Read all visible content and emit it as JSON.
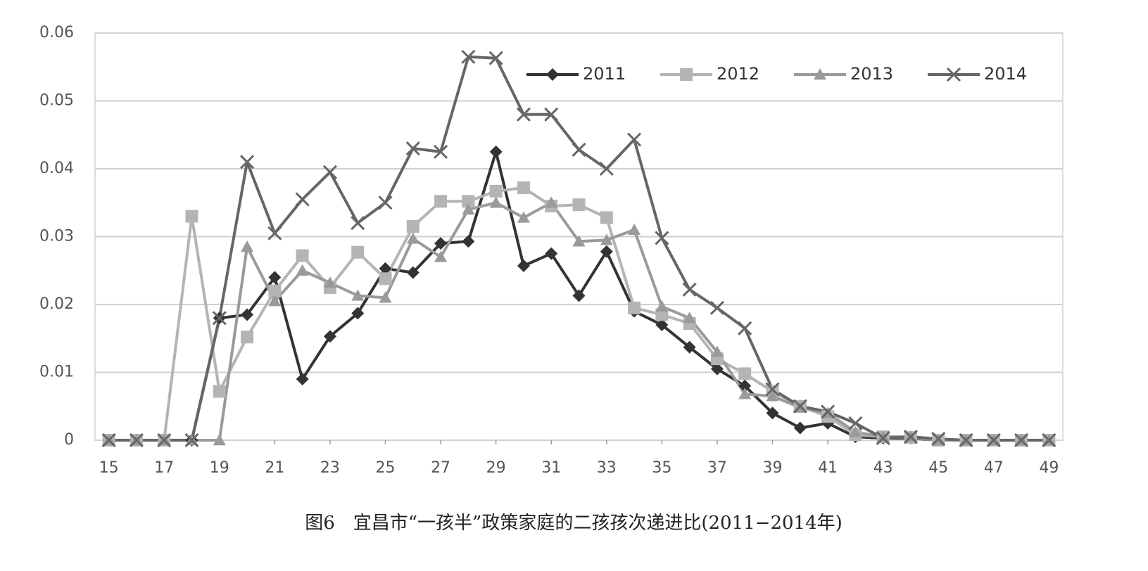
{
  "chart_data": {
    "type": "line",
    "title": "图6　宜昌市“一孩半”政策家庭的二孩孩次递进比(2011−2014年)",
    "x": [
      15,
      16,
      17,
      18,
      19,
      20,
      21,
      22,
      23,
      24,
      25,
      26,
      27,
      28,
      29,
      30,
      31,
      32,
      33,
      34,
      35,
      36,
      37,
      38,
      39,
      40,
      41,
      42,
      43,
      44,
      45,
      46,
      47,
      48,
      49
    ],
    "xlim": [
      14.5,
      49.5
    ],
    "xticks": [
      15,
      17,
      19,
      21,
      23,
      25,
      27,
      29,
      31,
      33,
      35,
      37,
      39,
      41,
      43,
      45,
      47,
      49
    ],
    "ylim": [
      0,
      0.06
    ],
    "yticks": [
      0,
      0.01,
      0.02,
      0.03,
      0.04,
      0.05,
      0.06
    ],
    "grid": true,
    "legend": "top-right",
    "series": [
      {
        "name": "2011",
        "color": "#333333",
        "marker": "diamond",
        "values": [
          0,
          0,
          0,
          0,
          0.018,
          0.0185,
          0.024,
          0.009,
          0.0153,
          0.0187,
          0.0253,
          0.0247,
          0.029,
          0.0293,
          0.0425,
          0.0257,
          0.0275,
          0.0213,
          0.0278,
          0.019,
          0.017,
          0.0137,
          0.0105,
          0.008,
          0.004,
          0.0018,
          0.0025,
          0.0005,
          0.0003,
          0.0003,
          0,
          0,
          0,
          0,
          0
        ]
      },
      {
        "name": "2012",
        "color": "#b4b4b4",
        "marker": "square",
        "values": [
          0,
          0,
          0,
          0.033,
          0.0072,
          0.0152,
          0.022,
          0.0272,
          0.0225,
          0.0277,
          0.0238,
          0.0315,
          0.0352,
          0.0352,
          0.0367,
          0.0372,
          0.0345,
          0.0347,
          0.0328,
          0.0195,
          0.0185,
          0.0172,
          0.012,
          0.0098,
          0.0072,
          0.005,
          0.0035,
          0.0008,
          0.0005,
          0.0004,
          0,
          0,
          0,
          0,
          0
        ]
      },
      {
        "name": "2013",
        "color": "#9a9a9a",
        "marker": "triangle",
        "values": [
          0,
          0,
          0,
          0,
          0,
          0.0285,
          0.0205,
          0.025,
          0.0232,
          0.0213,
          0.021,
          0.0297,
          0.027,
          0.034,
          0.035,
          0.0328,
          0.035,
          0.0293,
          0.0295,
          0.031,
          0.0197,
          0.018,
          0.013,
          0.0068,
          0.0065,
          0.0048,
          0.004,
          0.0012,
          0.0005,
          0.0005,
          0,
          0,
          0,
          0,
          0
        ]
      },
      {
        "name": "2014",
        "color": "#666666",
        "marker": "x",
        "values": [
          0,
          0,
          0,
          0,
          0.018,
          0.041,
          0.0305,
          0.0355,
          0.0395,
          0.032,
          0.035,
          0.043,
          0.0425,
          0.0565,
          0.0563,
          0.048,
          0.048,
          0.0428,
          0.04,
          0.0443,
          0.0298,
          0.0222,
          0.0195,
          0.0165,
          0.0075,
          0.005,
          0.0042,
          0.0025,
          0.0003,
          0.0005,
          0.0002,
          0,
          0,
          0,
          0
        ]
      }
    ]
  }
}
